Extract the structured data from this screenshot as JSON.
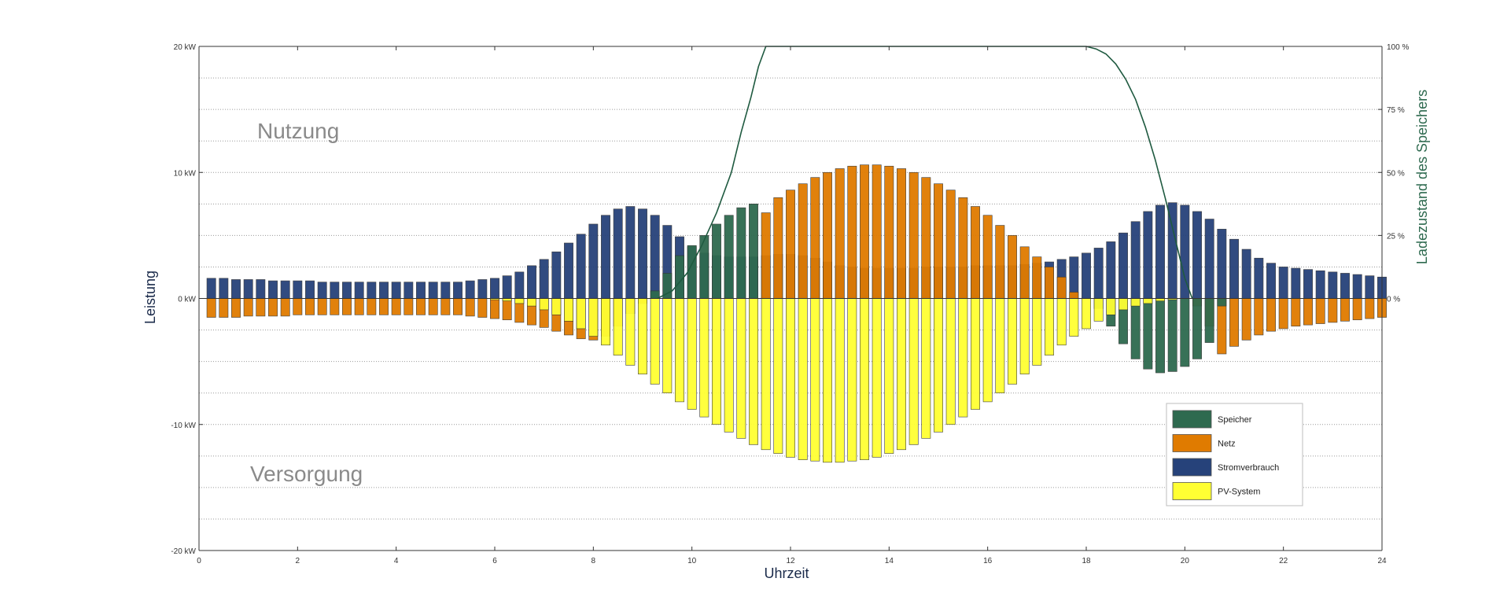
{
  "chart_data": {
    "type": "bar",
    "x_label": "Uhrzeit",
    "y_label": "Leistung",
    "y2_label": "Ladezustand des Speichers",
    "region_labels": {
      "top": "Nutzung",
      "bottom": "Versorgung"
    },
    "xlim": [
      0,
      24
    ],
    "ylim": [
      -20,
      20
    ],
    "y2lim": [
      0,
      100
    ],
    "x_ticks": [
      "0",
      "2",
      "4",
      "6",
      "8",
      "10",
      "12",
      "14",
      "16",
      "18",
      "20",
      "22",
      "24"
    ],
    "y_ticks": [
      "20 kW",
      "10 kW",
      "0 kW",
      "-10 kW",
      "-20 kW"
    ],
    "y2_ticks": [
      "100 %",
      "75 %",
      "50 %",
      "25 %",
      "0 %"
    ],
    "grid": "horizontal dotted",
    "legend_position": "lower-right",
    "legend": [
      "Speicher",
      "Netz",
      "Stromverbrauch",
      "PV-System"
    ],
    "colors": {
      "Speicher": "#2e6a4f",
      "Netz": "#e07b00",
      "Stromverbrauch": "#26427a",
      "PV-System": "#ffff33",
      "soc_line": "#1f5a40"
    },
    "x": [
      0.25,
      0.5,
      0.75,
      1.0,
      1.25,
      1.5,
      1.75,
      2.0,
      2.25,
      2.5,
      2.75,
      3.0,
      3.25,
      3.5,
      3.75,
      4.0,
      4.25,
      4.5,
      4.75,
      5.0,
      5.25,
      5.5,
      5.75,
      6.0,
      6.25,
      6.5,
      6.75,
      7.0,
      7.25,
      7.5,
      7.75,
      8.0,
      8.25,
      8.5,
      8.75,
      9.0,
      9.25,
      9.5,
      9.75,
      10.0,
      10.25,
      10.5,
      10.75,
      11.0,
      11.25,
      11.5,
      11.75,
      12.0,
      12.25,
      12.5,
      12.75,
      13.0,
      13.25,
      13.5,
      13.75,
      14.0,
      14.25,
      14.5,
      14.75,
      15.0,
      15.25,
      15.5,
      15.75,
      16.0,
      16.25,
      16.5,
      16.75,
      17.0,
      17.25,
      17.5,
      17.75,
      18.0,
      18.25,
      18.5,
      18.75,
      19.0,
      19.25,
      19.5,
      19.75,
      20.0,
      20.25,
      20.5,
      20.75,
      21.0,
      21.25,
      21.5,
      21.75,
      22.0,
      22.25,
      22.5,
      22.75,
      23.0,
      23.25,
      23.5,
      23.75,
      24.0
    ],
    "series": [
      {
        "name": "Stromverbrauch",
        "values": [
          1.6,
          1.6,
          1.5,
          1.5,
          1.5,
          1.4,
          1.4,
          1.4,
          1.4,
          1.3,
          1.3,
          1.3,
          1.3,
          1.3,
          1.3,
          1.3,
          1.3,
          1.3,
          1.3,
          1.3,
          1.3,
          1.4,
          1.5,
          1.6,
          1.8,
          2.1,
          2.6,
          3.1,
          3.7,
          4.4,
          5.1,
          5.9,
          6.6,
          7.1,
          7.3,
          7.1,
          6.6,
          5.8,
          4.9,
          4.1,
          3.6,
          3.4,
          3.3,
          3.3,
          3.3,
          3.4,
          3.5,
          3.5,
          3.4,
          3.2,
          2.9,
          2.6,
          2.5,
          2.4,
          2.4,
          2.4,
          2.4,
          2.4,
          2.5,
          2.5,
          2.5,
          2.5,
          2.6,
          2.6,
          2.6,
          2.6,
          2.7,
          2.8,
          2.9,
          3.1,
          3.3,
          3.6,
          4.0,
          4.5,
          5.2,
          6.1,
          6.9,
          7.4,
          7.6,
          7.4,
          6.9,
          6.3,
          5.5,
          4.7,
          3.9,
          3.2,
          2.8,
          2.5,
          2.4,
          2.3,
          2.2,
          2.1,
          2.0,
          1.9,
          1.8,
          1.7
        ]
      },
      {
        "name": "Netz",
        "values": [
          -1.5,
          -1.5,
          -1.5,
          -1.4,
          -1.4,
          -1.4,
          -1.4,
          -1.3,
          -1.3,
          -1.3,
          -1.3,
          -1.3,
          -1.3,
          -1.3,
          -1.3,
          -1.3,
          -1.3,
          -1.3,
          -1.3,
          -1.3,
          -1.3,
          -1.4,
          -1.5,
          -1.6,
          -1.7,
          -1.9,
          -2.1,
          -2.3,
          -2.6,
          -2.9,
          -3.2,
          -3.3,
          -3.0,
          -2.2,
          -1.2,
          -0.4,
          0,
          0,
          0,
          0,
          0,
          0,
          0,
          0,
          0,
          6.8,
          8.0,
          8.6,
          9.1,
          9.6,
          10.0,
          10.3,
          10.5,
          10.6,
          10.6,
          10.5,
          10.3,
          10.0,
          9.6,
          9.1,
          8.6,
          8.0,
          7.3,
          6.6,
          5.8,
          5.0,
          4.1,
          3.3,
          2.5,
          1.7,
          0.5,
          0,
          0,
          0,
          0,
          0,
          0,
          0,
          0,
          0,
          -0.6,
          -2.2,
          -4.4,
          -3.8,
          -3.3,
          -2.9,
          -2.6,
          -2.4,
          -2.2,
          -2.1,
          -2.0,
          -1.9,
          -1.8,
          -1.7,
          -1.6,
          -1.5
        ]
      },
      {
        "name": "Speicher",
        "values": [
          0,
          0,
          0,
          0,
          0,
          0,
          0,
          0,
          0,
          0,
          0,
          0,
          0,
          0,
          0,
          0,
          0,
          0,
          0,
          0,
          0,
          0,
          0,
          0,
          0,
          0,
          0,
          0,
          0,
          0,
          0,
          0,
          0,
          0,
          0,
          0,
          0.6,
          2.0,
          3.4,
          4.2,
          5.0,
          5.9,
          6.6,
          7.2,
          7.5,
          0,
          0,
          0,
          0,
          0,
          0,
          0,
          0,
          0,
          0,
          0,
          0,
          0,
          0,
          0,
          0,
          0,
          0,
          0,
          0,
          0,
          0,
          0,
          0,
          0,
          0,
          0,
          -0.8,
          -2.2,
          -3.6,
          -4.8,
          -5.6,
          -5.9,
          -5.8,
          -5.4,
          -4.8,
          -3.5,
          -0.6,
          0,
          0,
          0,
          0,
          0,
          0,
          0,
          0,
          0,
          0,
          0,
          0,
          0
        ]
      },
      {
        "name": "PV-System",
        "values": [
          0,
          0,
          0,
          0,
          0,
          0,
          0,
          0,
          0,
          0,
          0,
          0,
          0,
          0,
          0,
          0,
          0,
          0,
          0,
          0,
          0,
          0,
          0,
          -0.1,
          -0.2,
          -0.4,
          -0.6,
          -0.9,
          -1.3,
          -1.8,
          -2.4,
          -3.0,
          -3.7,
          -4.5,
          -5.3,
          -6.0,
          -6.8,
          -7.5,
          -8.2,
          -8.8,
          -9.4,
          -10.0,
          -10.6,
          -11.1,
          -11.6,
          -12.0,
          -12.3,
          -12.6,
          -12.8,
          -12.9,
          -13.0,
          -13.0,
          -12.9,
          -12.8,
          -12.6,
          -12.3,
          -12.0,
          -11.6,
          -11.1,
          -10.6,
          -10.0,
          -9.4,
          -8.8,
          -8.2,
          -7.5,
          -6.8,
          -6.0,
          -5.3,
          -4.5,
          -3.7,
          -3.0,
          -2.4,
          -1.8,
          -1.3,
          -0.9,
          -0.6,
          -0.4,
          -0.2,
          -0.1,
          0,
          0,
          0,
          0,
          0,
          0,
          0,
          0,
          0,
          0,
          0,
          0,
          0,
          0,
          0,
          0,
          0
        ]
      }
    ],
    "soc_line": {
      "x": [
        9.3,
        9.6,
        9.9,
        10.2,
        10.5,
        10.8,
        11.0,
        11.2,
        11.35,
        11.5,
        12.0,
        13.0,
        14.0,
        15.0,
        16.0,
        17.0,
        18.0,
        18.2,
        18.4,
        18.6,
        18.8,
        19.0,
        19.2,
        19.4,
        19.6,
        19.8,
        20.0,
        20.15
      ],
      "values": [
        0,
        3,
        10,
        21,
        34,
        50,
        66,
        80,
        92,
        100,
        100,
        100,
        100,
        100,
        100,
        100,
        100,
        99,
        97,
        93,
        87,
        79,
        68,
        55,
        40,
        24,
        8,
        0
      ]
    }
  }
}
